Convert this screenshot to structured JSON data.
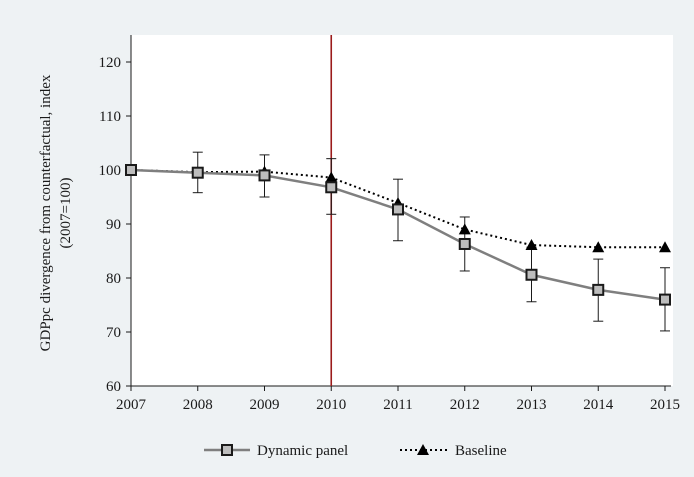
{
  "chart_data": {
    "type": "line",
    "title": "",
    "ylabel_line1": "GDPpc divergence from counterfactual, index",
    "ylabel_line2": "(2007=100)",
    "xlabel": "",
    "categories": [
      "2007",
      "2008",
      "2009",
      "2010",
      "2011",
      "2012",
      "2013",
      "2014",
      "2015"
    ],
    "ylim": [
      60,
      125
    ],
    "yticks": [
      60,
      70,
      80,
      90,
      100,
      110,
      120
    ],
    "grid": false,
    "legend_position": "bottom",
    "vertical_marker": {
      "x": "2010",
      "color": "#9b1b1b"
    },
    "series": [
      {
        "name": "Dynamic panel",
        "marker": "square",
        "line_style": "solid",
        "color": "#7f7f7f",
        "values": [
          100,
          99.5,
          99,
          96.8,
          92.7,
          86.3,
          80.6,
          77.8,
          76
        ],
        "error_low": [
          100,
          95.8,
          95,
          91.8,
          86.9,
          81.3,
          75.6,
          72,
          70.2
        ],
        "error_high": [
          100,
          103.3,
          102.8,
          102.1,
          98.3,
          91.3,
          85.7,
          83.5,
          81.9
        ]
      },
      {
        "name": "Baseline",
        "marker": "triangle",
        "line_style": "dotted",
        "color": "#000000",
        "values": [
          100,
          99.6,
          99.7,
          98.6,
          93.9,
          89,
          86.1,
          85.7,
          85.7
        ]
      }
    ]
  }
}
